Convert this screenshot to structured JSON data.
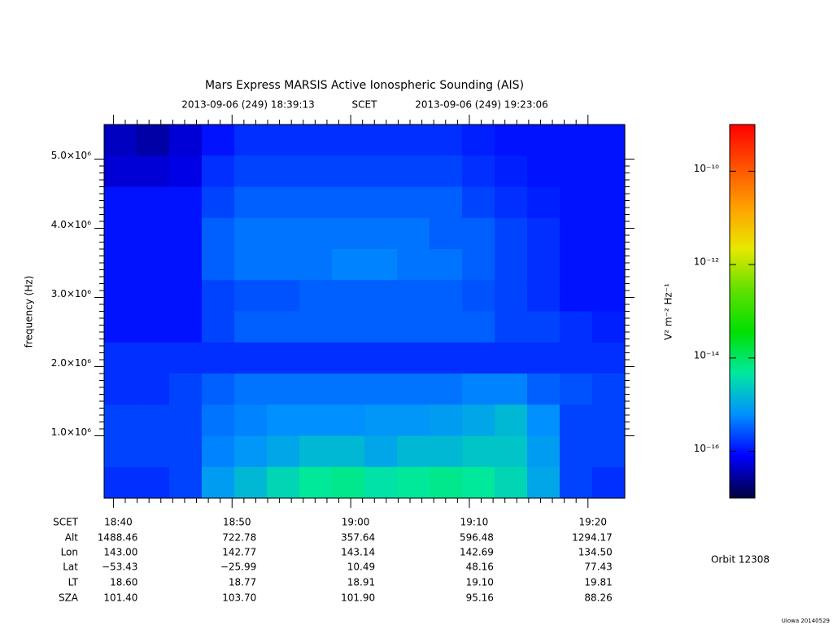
{
  "chart_data": {
    "type": "spectrogram",
    "title": "Mars Express MARSIS Active Ionospheric Sounding (AIS)",
    "subtitle": {
      "start": "2013-09-06 (249) 18:39:13",
      "scet": "SCET",
      "end": "2013-09-06 (249) 19:23:06"
    },
    "y_label": "frequency (Hz)",
    "xlim": [
      "18:39:13",
      "19:23:06"
    ],
    "xticks": [
      "18:40",
      "18:50",
      "19:00",
      "19:10",
      "19:20"
    ],
    "ylim": [
      100000,
      5500000
    ],
    "yticks": [
      {
        "value": 1000000,
        "label": "1.0×10⁶"
      },
      {
        "value": 2000000,
        "label": "2.0×10⁶"
      },
      {
        "value": 3000000,
        "label": "3.0×10⁶"
      },
      {
        "value": 4000000,
        "label": "4.0×10⁶"
      },
      {
        "value": 5000000,
        "label": "5.0×10⁶"
      }
    ],
    "z": [
      [
        4e-17,
        3e-17,
        5e-17,
        1e-16,
        1.5e-16,
        1.5e-16,
        1.5e-16,
        1.5e-16,
        1.5e-16,
        1.5e-16,
        1.5e-16,
        1.2e-16,
        1e-16,
        1e-16,
        1e-16,
        1e-16
      ],
      [
        5e-17,
        5e-17,
        6e-17,
        1.5e-16,
        2e-16,
        2e-16,
        2e-16,
        2e-16,
        2e-16,
        2e-16,
        2e-16,
        1.5e-16,
        1.2e-16,
        1e-16,
        1e-16,
        1e-16
      ],
      [
        1e-16,
        1e-16,
        1e-16,
        2e-16,
        3e-16,
        3e-16,
        3e-16,
        3e-16,
        3e-16,
        3e-16,
        3e-16,
        2e-16,
        1.5e-16,
        1.2e-16,
        1e-16,
        1e-16
      ],
      [
        1e-16,
        1e-16,
        1e-16,
        3e-16,
        4e-16,
        4e-16,
        4e-16,
        4e-16,
        4e-16,
        4e-16,
        3e-16,
        3e-16,
        2e-16,
        1.5e-16,
        1e-16,
        1e-16
      ],
      [
        1e-16,
        1e-16,
        1e-16,
        3e-16,
        4e-16,
        4e-16,
        4e-16,
        5e-16,
        5e-16,
        4e-16,
        4e-16,
        3e-16,
        2e-16,
        1.5e-16,
        1e-16,
        1e-16
      ],
      [
        1e-16,
        1e-16,
        1e-16,
        2e-16,
        2.5e-16,
        2.5e-16,
        3e-16,
        3e-16,
        3e-16,
        3e-16,
        3e-16,
        2.5e-16,
        2e-16,
        1.5e-16,
        1e-16,
        1e-16
      ],
      [
        1e-16,
        1e-16,
        1e-16,
        2e-16,
        3e-16,
        3e-16,
        3e-16,
        3e-16,
        3e-16,
        3e-16,
        3e-16,
        3e-16,
        2e-16,
        2e-16,
        1.5e-16,
        1.2e-16
      ],
      [
        1.5e-16,
        1.5e-16,
        1.5e-16,
        1.5e-16,
        1.5e-16,
        1.5e-16,
        1.5e-16,
        1.5e-16,
        1.5e-16,
        1.5e-16,
        1.5e-16,
        1.5e-16,
        1.5e-16,
        1.5e-16,
        1.5e-16,
        1.5e-16
      ],
      [
        1.5e-16,
        1.5e-16,
        2e-16,
        3e-16,
        4e-16,
        4e-16,
        4e-16,
        4e-16,
        4e-16,
        4e-16,
        4e-16,
        5e-16,
        5e-16,
        3e-16,
        2.5e-16,
        2e-16
      ],
      [
        2e-16,
        2e-16,
        2e-16,
        4e-16,
        5e-16,
        6e-16,
        6e-16,
        6e-16,
        7e-16,
        7e-16,
        8e-16,
        1e-15,
        1.5e-15,
        6e-16,
        2e-16,
        2e-16
      ],
      [
        2e-16,
        2e-16,
        2e-16,
        5e-16,
        7e-16,
        1e-15,
        1.5e-15,
        1.5e-15,
        1e-15,
        1.5e-15,
        1.5e-15,
        2e-15,
        2e-15,
        8e-16,
        2e-16,
        2e-16
      ],
      [
        1.5e-16,
        1.5e-16,
        2e-16,
        8e-16,
        1.5e-15,
        3e-15,
        5e-15,
        6e-15,
        4e-15,
        5e-15,
        6e-15,
        5e-15,
        3e-15,
        1e-15,
        2e-16,
        1.5e-16
      ]
    ],
    "zlim": [
      1e-17,
      1e-09
    ],
    "zlog": true,
    "zticks": [
      {
        "value": 1e-10,
        "label": "10⁻¹⁰"
      },
      {
        "value": 1e-12,
        "label": "10⁻¹²"
      },
      {
        "value": 1e-14,
        "label": "10⁻¹⁴"
      },
      {
        "value": 1e-16,
        "label": "10⁻¹⁶"
      }
    ],
    "z_label": "V² m⁻² Hz⁻¹",
    "colormap": [
      "#000040",
      "#0000ff",
      "#0090ff",
      "#00e8a0",
      "#00e000",
      "#60e000",
      "#e8e800",
      "#ffa000",
      "#ff5000",
      "#ff0000"
    ],
    "ephemeris": {
      "time_label": "SCET",
      "rows": [
        {
          "label": "Alt",
          "values": [
            "1488.46",
            "722.78",
            "357.64",
            "596.48",
            "1294.17"
          ]
        },
        {
          "label": "Lon",
          "values": [
            "143.00",
            "142.77",
            "143.14",
            "142.69",
            "134.50"
          ]
        },
        {
          "label": "Lat",
          "values": [
            "−53.43",
            "−25.99",
            "10.49",
            "48.16",
            "77.43"
          ]
        },
        {
          "label": "LT",
          "values": [
            "18.60",
            "18.77",
            "18.91",
            "19.10",
            "19.81"
          ]
        },
        {
          "label": "SZA",
          "values": [
            "101.40",
            "103.70",
            "101.90",
            "95.16",
            "88.26"
          ]
        }
      ]
    },
    "orbit": "Orbit 12308",
    "footer": "Uiowa 20140529"
  }
}
